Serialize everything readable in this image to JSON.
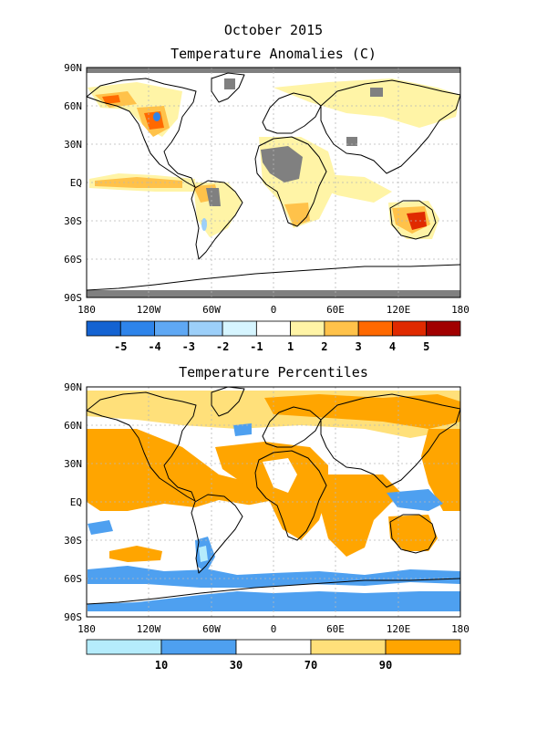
{
  "figure": {
    "title": "October 2015"
  },
  "anomaly_map": {
    "title": "Temperature Anomalies (C)",
    "lat_labels": [
      "90N",
      "60N",
      "30N",
      "EQ",
      "30S",
      "60S",
      "90S"
    ],
    "lon_labels": [
      "180",
      "120W",
      "60W",
      "0",
      "60E",
      "120E",
      "180"
    ],
    "colorbar": {
      "colors": [
        "#1463d2",
        "#2e84ea",
        "#5fa8f4",
        "#9ccff9",
        "#d6f5ff",
        "#ffffff",
        "#fff4a6",
        "#ffc24a",
        "#ff6900",
        "#e02a00",
        "#a10000"
      ],
      "labels": [
        "-5",
        "-4",
        "-3",
        "-2",
        "-1",
        "1",
        "2",
        "3",
        "4",
        "5"
      ]
    }
  },
  "percentile_map": {
    "title": "Temperature Percentiles",
    "lat_labels": [
      "90N",
      "60N",
      "30N",
      "EQ",
      "30S",
      "60S",
      "90S"
    ],
    "lon_labels": [
      "180",
      "120W",
      "60W",
      "0",
      "60E",
      "120E",
      "180"
    ],
    "colorbar": {
      "colors": [
        "#b5ecfc",
        "#4ea0f0",
        "#ffffff",
        "#ffe07a",
        "#ffa500"
      ],
      "labels": [
        "10",
        "30",
        "70",
        "90"
      ]
    }
  },
  "colors": {
    "missing": "#808080",
    "warm1": "#fff4a6",
    "warm2": "#ffc24a",
    "warm3": "#ff6900",
    "warm4": "#e02a00",
    "cold": "#5fa8f4",
    "p90": "#ffa500",
    "p70": "#ffe07a",
    "p10": "#4ea0f0",
    "p0": "#b5ecfc"
  }
}
